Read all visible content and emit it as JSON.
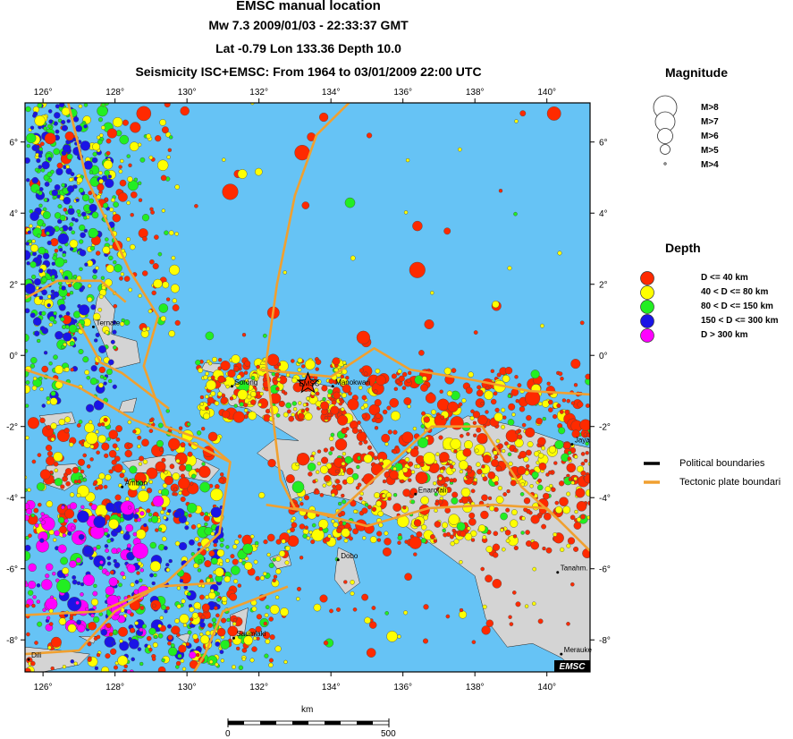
{
  "header": {
    "title": "EMSC manual location",
    "event": "Mw 7.3  2009/01/03 - 22:33:37 GMT",
    "coords": "Lat -0.79     Lon 133.36     Depth  10.0",
    "seismicity": "Seismicity ISC+EMSC: From 1964 to 03/01/2009 22:00 UTC"
  },
  "axes": {
    "lon_ticks": [
      "126°",
      "128°",
      "130°",
      "132°",
      "134°",
      "136°",
      "138°",
      "140°"
    ],
    "lat_ticks": [
      "6°",
      "4°",
      "2°",
      "0°",
      "-2°",
      "-4°",
      "-6°",
      "-8°"
    ]
  },
  "places": [
    {
      "name": "Ternate",
      "lon": 127.4,
      "lat": 0.8
    },
    {
      "name": "Sorong",
      "lon": 131.25,
      "lat": -0.87
    },
    {
      "name": "EMSC",
      "lon": 133.36,
      "lat": -0.79
    },
    {
      "name": "Manokwari",
      "lon": 134.05,
      "lat": -0.87
    },
    {
      "name": "Ambon",
      "lon": 128.2,
      "lat": -3.7
    },
    {
      "name": "Enarotali",
      "lon": 136.35,
      "lat": -3.9
    },
    {
      "name": "Jaya",
      "lon": 140.7,
      "lat": -2.5
    },
    {
      "name": "Dobo",
      "lon": 134.2,
      "lat": -5.75
    },
    {
      "name": "Tanahm.",
      "lon": 140.3,
      "lat": -6.1
    },
    {
      "name": "Saumlaki",
      "lon": 131.3,
      "lat": -7.95
    },
    {
      "name": "Merauke",
      "lon": 140.4,
      "lat": -8.4
    },
    {
      "name": "Dili",
      "lon": 125.6,
      "lat": -8.55
    }
  ],
  "logo": "EMSC",
  "legend": {
    "magnitude_title": "Magnitude",
    "magnitudes": [
      "M>8",
      "M>7",
      "M>6",
      "M>5",
      "M>4"
    ],
    "depth_title": "Depth",
    "depths": [
      {
        "label": "D <= 40 km",
        "color": "#ff2a00"
      },
      {
        "label": "40 < D <= 80 km",
        "color": "#ffff00"
      },
      {
        "label": "80 < D <= 150 km",
        "color": "#22ee22"
      },
      {
        "label": "150 < D <= 300 km",
        "color": "#1a14e6"
      },
      {
        "label": "D > 300 km",
        "color": "#ff00ff"
      }
    ],
    "lines": [
      {
        "label": "Political boundaries",
        "color": "#000000"
      },
      {
        "label": "Tectonic plate boundari",
        "color": "#f0a030"
      }
    ]
  },
  "scalebar": {
    "unit": "km",
    "min": "0",
    "max": "500"
  },
  "colors": {
    "ocean": "#66c3f5",
    "land": "#d4d4d4",
    "plate": "#f0a030"
  }
}
